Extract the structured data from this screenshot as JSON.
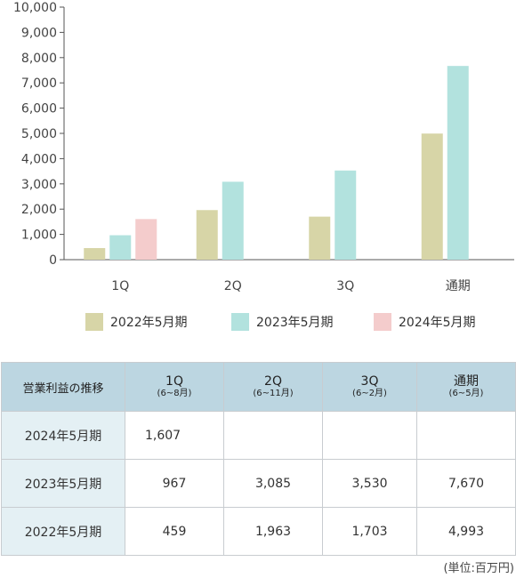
{
  "chart_data": {
    "type": "bar",
    "categories": [
      "1Q",
      "2Q",
      "3Q",
      "通期"
    ],
    "series": [
      {
        "name": "2022年5月期",
        "color": "#d7d5a7",
        "values": [
          459,
          1963,
          1703,
          4993
        ]
      },
      {
        "name": "2023年5月期",
        "color": "#b2e2de",
        "values": [
          967,
          3085,
          3530,
          7670
        ]
      },
      {
        "name": "2024年5月期",
        "color": "#f4cccc",
        "values": [
          1607,
          null,
          null,
          null
        ]
      }
    ],
    "ylim": [
      0,
      10000
    ],
    "yticks": [
      "0",
      "1,000",
      "2,000",
      "3,000",
      "4,000",
      "5,000",
      "6,000",
      "7,000",
      "8,000",
      "9,000",
      "10,000"
    ],
    "grid": false,
    "legend_position": "bottom"
  },
  "table": {
    "corner": "営業利益の推移",
    "columns": [
      {
        "label": "1Q",
        "sub": "(6~8月)"
      },
      {
        "label": "2Q",
        "sub": "(6~11月)"
      },
      {
        "label": "3Q",
        "sub": "(6~2月)"
      },
      {
        "label": "通期",
        "sub": "(6~5月)"
      }
    ],
    "rows": [
      {
        "label": "2024年5月期",
        "values": [
          "1,607",
          "",
          "",
          ""
        ]
      },
      {
        "label": "2023年5月期",
        "values": [
          "967",
          "3,085",
          "3,530",
          "7,670"
        ]
      },
      {
        "label": "2022年5月期",
        "values": [
          "459",
          "1,963",
          "1,703",
          "4,993"
        ]
      }
    ]
  },
  "unit_note": "(単位:百万円)"
}
